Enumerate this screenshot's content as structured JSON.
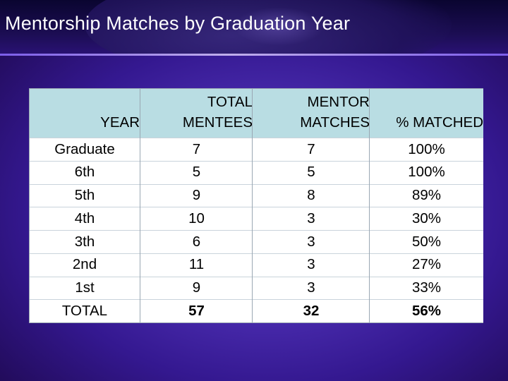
{
  "slide": {
    "title": "Mentorship Matches by Graduation Year"
  },
  "table": {
    "headers": {
      "year": [
        "YEAR"
      ],
      "total_mentees": [
        "TOTAL",
        "MENTEES"
      ],
      "mentor_matches": [
        "MENTOR",
        "MATCHES"
      ],
      "pct_matched": [
        "% MATCHED"
      ]
    },
    "rows": [
      {
        "year": "Graduate",
        "total_mentees": "7",
        "mentor_matches": "7",
        "pct_matched": "100%"
      },
      {
        "year": "6th",
        "total_mentees": "5",
        "mentor_matches": "5",
        "pct_matched": "100%"
      },
      {
        "year": "5th",
        "total_mentees": "9",
        "mentor_matches": "8",
        "pct_matched": "89%"
      },
      {
        "year": "4th",
        "total_mentees": "10",
        "mentor_matches": "3",
        "pct_matched": "30%"
      },
      {
        "year": "3th",
        "total_mentees": "6",
        "mentor_matches": "3",
        "pct_matched": "50%"
      },
      {
        "year": "2nd",
        "total_mentees": "11",
        "mentor_matches": "3",
        "pct_matched": "27%"
      },
      {
        "year": "1st",
        "total_mentees": "9",
        "mentor_matches": "3",
        "pct_matched": "33%"
      }
    ],
    "total": {
      "year": "TOTAL",
      "total_mentees": "57",
      "mentor_matches": "32",
      "pct_matched": "56%"
    }
  },
  "colors": {
    "background": "#4b2db0",
    "header_fill": "#b9dde3",
    "cell_fill": "#ffffff",
    "title_text": "#ffffff"
  }
}
